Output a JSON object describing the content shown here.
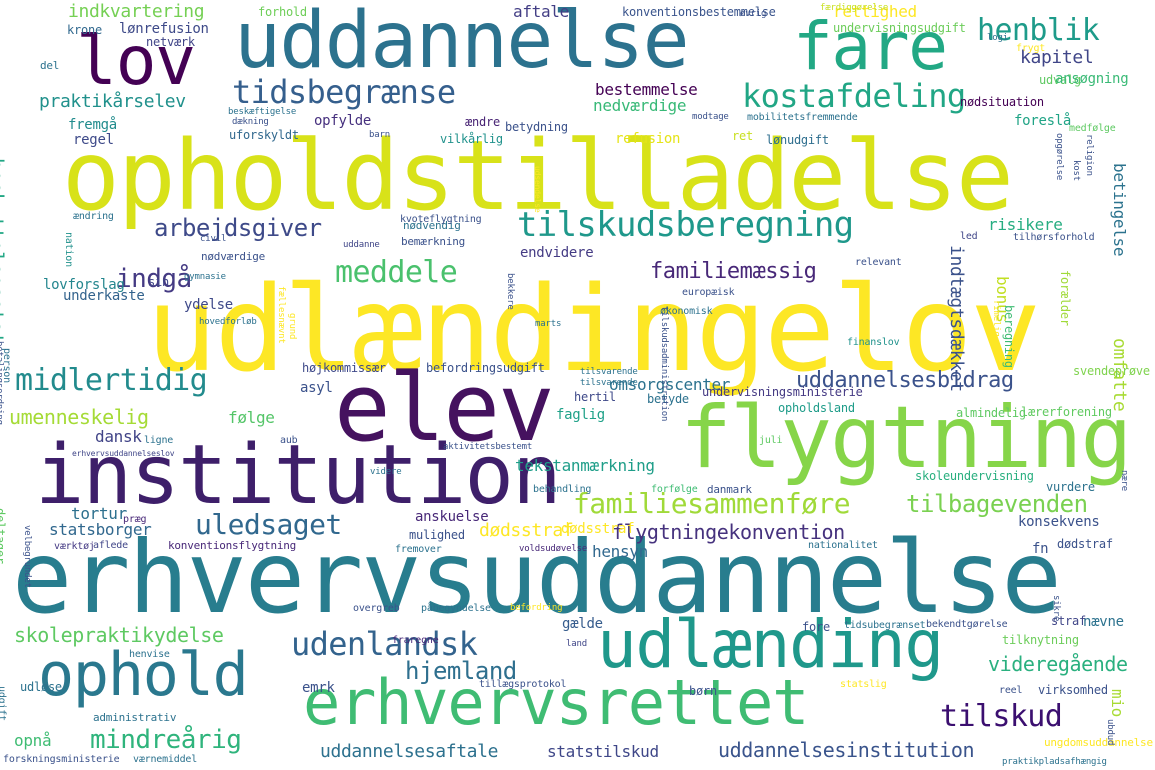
{
  "cloud": {
    "words": [
      {
        "text": "opholdstilladelse",
        "color": "#d8e219"
      },
      {
        "text": "udlændingelov",
        "color": "#fde725"
      },
      {
        "text": "erhvervsuddannelse",
        "color": "#287d8e"
      },
      {
        "text": "uddannelse",
        "color": "#2c728e"
      },
      {
        "text": "institution",
        "color": "#3e1f6a"
      },
      {
        "text": "flygtning",
        "color": "#86d549"
      },
      {
        "text": "elev",
        "color": "#45125f"
      },
      {
        "text": "fare",
        "color": "#22a884"
      },
      {
        "text": "lov",
        "color": "#440154"
      },
      {
        "text": "udlænding",
        "color": "#1f988b"
      },
      {
        "text": "erhvervsrettet",
        "color": "#3fbc73"
      },
      {
        "text": "ophold",
        "color": "#2a788e"
      },
      {
        "text": "tilskudsberegning",
        "color": "#1f988b"
      },
      {
        "text": "tidsbegrænse",
        "color": "#355f8d"
      },
      {
        "text": "kostafdeling",
        "color": "#21a685"
      },
      {
        "text": "udenlandsk",
        "color": "#33638d"
      },
      {
        "text": "midlertidig",
        "color": "#228b8d"
      },
      {
        "text": "meddele",
        "color": "#4ac16d"
      },
      {
        "text": "familiesammenføre",
        "color": "#a0da39"
      },
      {
        "text": "tilbagevenden",
        "color": "#7ad151"
      },
      {
        "text": "uledsaget",
        "color": "#31688e"
      },
      {
        "text": "uddannelsesbidrag",
        "color": "#3b528b"
      },
      {
        "text": "tilskud",
        "color": "#3b0f70"
      },
      {
        "text": "mindreårig",
        "color": "#2fb47c"
      },
      {
        "text": "henblik",
        "color": "#1e9b8a"
      },
      {
        "text": "arbejdsgiver",
        "color": "#3e4a89"
      },
      {
        "text": "familiemæssig",
        "color": "#482878"
      },
      {
        "text": "indgå",
        "color": "#443a83"
      },
      {
        "text": "beskyttelsesstatus",
        "color": "#22a785"
      },
      {
        "text": "hjemland",
        "color": "#2e6f8e"
      },
      {
        "text": "skolepraktikydelse",
        "color": "#5ec962"
      },
      {
        "text": "uddannelsesaftale",
        "color": "#2d718e"
      },
      {
        "text": "uddannelsesinstitution",
        "color": "#3a548c"
      },
      {
        "text": "statstilskud",
        "color": "#3f4788"
      },
      {
        "text": "flygtningekonvention",
        "color": "#46327e"
      },
      {
        "text": "videregående",
        "color": "#2ab07f"
      },
      {
        "text": "umenneskelig",
        "color": "#a5db36"
      },
      {
        "text": "indtægtsdækket",
        "color": "#3b528b"
      },
      {
        "text": "kapitel",
        "color": "#404688"
      },
      {
        "text": "praktikårselev",
        "color": "#21918c"
      },
      {
        "text": "indkvartering",
        "color": "#75d054"
      },
      {
        "text": "bestemmelse",
        "color": "#440154"
      },
      {
        "text": "nedværdige",
        "color": "#38b977"
      },
      {
        "text": "rettighed",
        "color": "#fde725"
      },
      {
        "text": "dødsstraf",
        "color": "#fde725"
      },
      {
        "text": "hensyn",
        "color": "#31688e"
      },
      {
        "text": "tekstanmærkning",
        "color": "#1f9e89"
      },
      {
        "text": "omsorgscenter",
        "color": "#2c728e"
      },
      {
        "text": "tortur",
        "color": "#2d708e"
      },
      {
        "text": "statsborger",
        "color": "#31688e"
      },
      {
        "text": "konsekvens",
        "color": "#3b528b"
      },
      {
        "text": "dansk",
        "color": "#414487"
      },
      {
        "text": "faglig",
        "color": "#1fa188"
      },
      {
        "text": "følge",
        "color": "#54c568"
      },
      {
        "text": "ydelse",
        "color": "#3e4989"
      },
      {
        "text": "endvidere",
        "color": "#443b84"
      },
      {
        "text": "lovforslag",
        "color": "#24868e"
      },
      {
        "text": "underkaste",
        "color": "#33638d"
      },
      {
        "text": "omfatte",
        "color": "#a8db34"
      },
      {
        "text": "betingelse",
        "color": "#2c738e"
      },
      {
        "text": "bonus",
        "color": "#c2df23"
      },
      {
        "text": "risikere",
        "color": "#27ad81"
      },
      {
        "text": "fremgå",
        "color": "#228c8d"
      },
      {
        "text": "aftale",
        "color": "#433e85"
      },
      {
        "text": "lønrefusion",
        "color": "#3e4a89"
      },
      {
        "text": "forhold",
        "color": "#6ece58"
      },
      {
        "text": "krone",
        "color": "#31688e"
      },
      {
        "text": "netværk",
        "color": "#404588"
      },
      {
        "text": "konventionsbestemmelse",
        "color": "#3a548c"
      },
      {
        "text": "undervisningsudgift",
        "color": "#6ccd5a"
      },
      {
        "text": "foreslå",
        "color": "#20a486"
      },
      {
        "text": "nødsituation",
        "color": "#440154"
      },
      {
        "text": "udvalg",
        "color": "#5ec962"
      },
      {
        "text": "ansøgning",
        "color": "#3aba76"
      },
      {
        "text": "opfylde",
        "color": "#46307e"
      },
      {
        "text": "ændre",
        "color": "#482374"
      },
      {
        "text": "betydning",
        "color": "#3b528b"
      },
      {
        "text": "vilkårlig",
        "color": "#20928c"
      },
      {
        "text": "uforskyldt",
        "color": "#31688e"
      },
      {
        "text": "regel",
        "color": "#3e4a89"
      },
      {
        "text": "lønudgift",
        "color": "#2e6e8e"
      },
      {
        "text": "refusion",
        "color": "#e5e419"
      },
      {
        "text": "ret",
        "color": "#c8e020"
      },
      {
        "text": "højkommissær",
        "color": "#3e4989"
      },
      {
        "text": "befordringsudgift",
        "color": "#3b528b"
      },
      {
        "text": "undervisningsministerie",
        "color": "#443983"
      },
      {
        "text": "opholdsland",
        "color": "#1e9c89"
      },
      {
        "text": "skoleundervisning",
        "color": "#29af7f"
      },
      {
        "text": "vurdere",
        "color": "#2c728e"
      },
      {
        "text": "svendeprøve",
        "color": "#7fd34e"
      },
      {
        "text": "lærerforening",
        "color": "#60ca60"
      },
      {
        "text": "almindelig",
        "color": "#5ec962"
      },
      {
        "text": "anskuelse",
        "color": "#482878"
      },
      {
        "text": "mulighed",
        "color": "#3b528b"
      },
      {
        "text": "fn",
        "color": "#3b528b"
      },
      {
        "text": "dødstraf",
        "color": "#3b528b"
      },
      {
        "text": "emrk",
        "color": "#3b528b"
      },
      {
        "text": "tilknytning",
        "color": "#6ccd5a"
      },
      {
        "text": "nævne",
        "color": "#2c728e"
      },
      {
        "text": "straf",
        "color": "#404688"
      },
      {
        "text": "gælde",
        "color": "#365c8d"
      },
      {
        "text": "opnå",
        "color": "#3fbc73"
      },
      {
        "text": "mio",
        "color": "#a8db34"
      },
      {
        "text": "ungdomsuddannelse",
        "color": "#fde725"
      },
      {
        "text": "virksomhed",
        "color": "#3b528b"
      },
      {
        "text": "administrativ",
        "color": "#2c728e"
      },
      {
        "text": "udløse",
        "color": "#2c728e"
      },
      {
        "text": "børn",
        "color": "#3b528b"
      },
      {
        "text": "fremover",
        "color": "#2c728e"
      },
      {
        "text": "dødsstraf",
        "color": "#fde725"
      },
      {
        "text": "præg",
        "color": "#482878"
      },
      {
        "text": "værktøj",
        "color": "#443983"
      },
      {
        "text": "deltager",
        "color": "#5ec962"
      },
      {
        "text": "udgift",
        "color": "#2c728e"
      },
      {
        "text": "sin",
        "color": "#404688"
      },
      {
        "text": "asyl",
        "color": "#3b528b"
      },
      {
        "text": "betyde",
        "color": "#2c728e"
      },
      {
        "text": "hertil",
        "color": "#3e4989"
      },
      {
        "text": "europæisk",
        "color": "#3b528b"
      },
      {
        "text": "økonomisk",
        "color": "#2c728e"
      },
      {
        "text": "finanslov",
        "color": "#20928c"
      },
      {
        "text": "relevant",
        "color": "#3b528b"
      },
      {
        "text": "forælder",
        "color": "#a0da39"
      },
      {
        "text": "beregning",
        "color": "#3fbc73"
      },
      {
        "text": "led",
        "color": "#404688"
      },
      {
        "text": "tilhørsforhold",
        "color": "#3b528b"
      },
      {
        "text": "bemærkning",
        "color": "#3b528b"
      },
      {
        "text": "nødvendig",
        "color": "#2c728e"
      },
      {
        "text": "nødværdige",
        "color": "#3b528b"
      },
      {
        "text": "gymnasie",
        "color": "#2c728e"
      },
      {
        "text": "civil",
        "color": "#3b528b"
      },
      {
        "text": "nation",
        "color": "#21918c"
      },
      {
        "text": "ændring",
        "color": "#2c728e"
      },
      {
        "text": "kvoteflygtning",
        "color": "#3b528b"
      },
      {
        "text": "uddanne",
        "color": "#404688"
      },
      {
        "text": "tilsvarende",
        "color": "#2c728e"
      },
      {
        "text": "velbegrundet",
        "color": "#3b528b"
      },
      {
        "text": "aflede",
        "color": "#404688"
      },
      {
        "text": "konventionsflygtning",
        "color": "#482878"
      },
      {
        "text": "behandling",
        "color": "#2c728e"
      },
      {
        "text": "aktivitetsbestemt",
        "color": "#3b528b"
      },
      {
        "text": "forfølge",
        "color": "#3fbc73"
      },
      {
        "text": "danmark",
        "color": "#3b528b"
      },
      {
        "text": "nationalitet",
        "color": "#2c728e"
      },
      {
        "text": "voldsudøvelse",
        "color": "#482878"
      },
      {
        "text": "overgreb",
        "color": "#3b528b"
      },
      {
        "text": "påbegyndelse",
        "color": "#2c728e"
      },
      {
        "text": "befordring",
        "color": "#fde725"
      },
      {
        "text": "tidsubegrænset",
        "color": "#2c728e"
      },
      {
        "text": "bekendtgørelse",
        "color": "#3b528b"
      },
      {
        "text": "fore",
        "color": "#3b528b"
      },
      {
        "text": "land",
        "color": "#404688"
      },
      {
        "text": "fraregne",
        "color": "#482878"
      },
      {
        "text": "henvise",
        "color": "#2c728e"
      },
      {
        "text": "tillægsprotokol",
        "color": "#3b528b"
      },
      {
        "text": "statslig",
        "color": "#fde725"
      },
      {
        "text": "reel",
        "color": "#3b528b"
      },
      {
        "text": "ubdud",
        "color": "#3b528b"
      },
      {
        "text": "praktikpladsafhængig",
        "color": "#2c728e"
      },
      {
        "text": "forskningsministerie",
        "color": "#3b528b"
      },
      {
        "text": "værnemiddel",
        "color": "#2c728e"
      },
      {
        "text": "hovedforløb",
        "color": "#2c728e"
      },
      {
        "text": "betalingsordning",
        "color": "#3b528b"
      },
      {
        "text": "person",
        "color": "#2c728e"
      },
      {
        "text": "ligne",
        "color": "#2c728e"
      },
      {
        "text": "aub",
        "color": "#3b528b"
      },
      {
        "text": "erhvervsuddannelseslov",
        "color": "#404688"
      },
      {
        "text": "kost",
        "color": "#3b528b"
      },
      {
        "text": "opgørelse",
        "color": "#3b528b"
      },
      {
        "text": "religion",
        "color": "#3b528b"
      },
      {
        "text": "medfølge",
        "color": "#5ec962"
      },
      {
        "text": "logi",
        "color": "#2c728e"
      },
      {
        "text": "frygt",
        "color": "#fde725"
      },
      {
        "text": "mobilitetsfremmende",
        "color": "#2c728e"
      },
      {
        "text": "modtage",
        "color": "#3b528b"
      },
      {
        "text": "beskæftigelse",
        "color": "#2c728e"
      },
      {
        "text": "dækning",
        "color": "#3b528b"
      },
      {
        "text": "barn",
        "color": "#3b528b"
      },
      {
        "text": "del",
        "color": "#2c728e"
      },
      {
        "text": "øvrig",
        "color": "#3b528b"
      },
      {
        "text": "færdiggørelse",
        "color": "#c8e020"
      },
      {
        "text": "udsendelse",
        "color": "#fde725"
      },
      {
        "text": "tilskudsadministration",
        "color": "#3b528b"
      },
      {
        "text": "tilsvarende",
        "color": "#2c728e"
      },
      {
        "text": "rimelig",
        "color": "#fde725"
      },
      {
        "text": "marts",
        "color": "#2c728e"
      },
      {
        "text": "videre",
        "color": "#2c728e"
      },
      {
        "text": "juli",
        "color": "#5ec962"
      },
      {
        "text": "sikre",
        "color": "#3b528b"
      },
      {
        "text": "nære",
        "color": "#3b528b"
      },
      {
        "text": "grund",
        "color": "#fde725"
      },
      {
        "text": "fællesnævnt",
        "color": "#fde725"
      },
      {
        "text": "bekkere",
        "color": "#3b528b"
      }
    ]
  }
}
